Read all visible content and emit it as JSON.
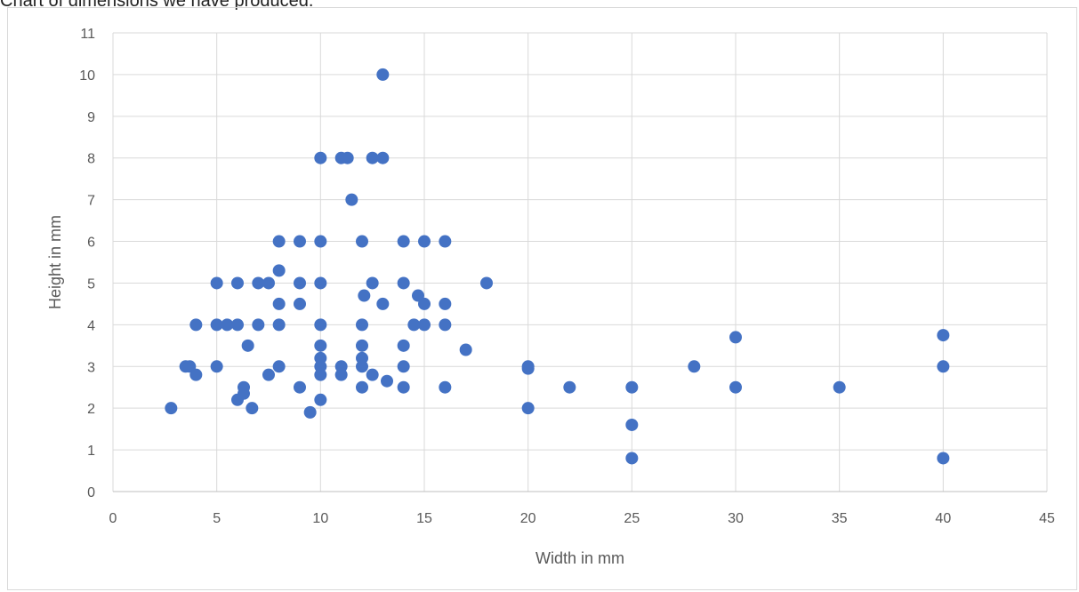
{
  "caption": "Chart of dimensions we have produced.",
  "chart_data": {
    "type": "scatter",
    "xlabel": "Width in mm",
    "ylabel": "Height in mm",
    "xlim": [
      0,
      45
    ],
    "ylim": [
      0,
      11
    ],
    "x_ticks": [
      "0",
      "5",
      "10",
      "15",
      "20",
      "25",
      "30",
      "35",
      "40",
      "45"
    ],
    "y_ticks": [
      "0",
      "1",
      "2",
      "3",
      "4",
      "5",
      "6",
      "7",
      "8",
      "9",
      "10",
      "11"
    ],
    "grid": true,
    "legend": "none",
    "marker_color": "#4472c4",
    "points": [
      [
        2.8,
        2.0
      ],
      [
        3.5,
        3.0
      ],
      [
        3.7,
        3.0
      ],
      [
        4.0,
        4.0
      ],
      [
        4.0,
        2.8
      ],
      [
        5.0,
        5.0
      ],
      [
        5.0,
        4.0
      ],
      [
        5.0,
        3.0
      ],
      [
        5.5,
        4.0
      ],
      [
        6.0,
        5.0
      ],
      [
        6.0,
        4.0
      ],
      [
        6.0,
        2.2
      ],
      [
        6.3,
        2.5
      ],
      [
        6.3,
        2.35
      ],
      [
        6.5,
        3.5
      ],
      [
        6.7,
        2.0
      ],
      [
        7.0,
        5.0
      ],
      [
        7.0,
        4.0
      ],
      [
        7.5,
        5.0
      ],
      [
        7.5,
        2.8
      ],
      [
        8.0,
        6.0
      ],
      [
        8.0,
        5.3
      ],
      [
        8.0,
        4.5
      ],
      [
        8.0,
        4.0
      ],
      [
        8.0,
        3.0
      ],
      [
        9.0,
        6.0
      ],
      [
        9.0,
        5.0
      ],
      [
        9.0,
        4.5
      ],
      [
        9.0,
        2.5
      ],
      [
        9.5,
        1.9
      ],
      [
        10.0,
        8.0
      ],
      [
        10.0,
        6.0
      ],
      [
        10.0,
        5.0
      ],
      [
        10.0,
        4.0
      ],
      [
        10.0,
        3.5
      ],
      [
        10.0,
        3.2
      ],
      [
        10.0,
        3.0
      ],
      [
        10.0,
        2.8
      ],
      [
        10.0,
        2.2
      ],
      [
        11.0,
        8.0
      ],
      [
        11.0,
        3.0
      ],
      [
        11.0,
        2.8
      ],
      [
        11.3,
        8.0
      ],
      [
        11.5,
        7.0
      ],
      [
        12.0,
        6.0
      ],
      [
        12.0,
        4.0
      ],
      [
        12.0,
        3.5
      ],
      [
        12.0,
        3.2
      ],
      [
        12.0,
        3.0
      ],
      [
        12.0,
        2.5
      ],
      [
        12.1,
        4.7
      ],
      [
        12.5,
        8.0
      ],
      [
        12.5,
        5.0
      ],
      [
        12.5,
        2.8
      ],
      [
        13.0,
        10.0
      ],
      [
        13.0,
        8.0
      ],
      [
        13.0,
        4.5
      ],
      [
        13.2,
        2.65
      ],
      [
        14.0,
        6.0
      ],
      [
        14.0,
        5.0
      ],
      [
        14.0,
        3.5
      ],
      [
        14.0,
        3.0
      ],
      [
        14.0,
        2.5
      ],
      [
        14.5,
        4.0
      ],
      [
        14.7,
        4.7
      ],
      [
        15.0,
        6.0
      ],
      [
        15.0,
        4.5
      ],
      [
        15.0,
        4.0
      ],
      [
        16.0,
        6.0
      ],
      [
        16.0,
        4.5
      ],
      [
        16.0,
        4.0
      ],
      [
        16.0,
        2.5
      ],
      [
        17.0,
        3.4
      ],
      [
        18.0,
        5.0
      ],
      [
        20.0,
        3.0
      ],
      [
        20.0,
        2.95
      ],
      [
        20.0,
        2.0
      ],
      [
        22.0,
        2.5
      ],
      [
        25.0,
        2.5
      ],
      [
        25.0,
        1.6
      ],
      [
        25.0,
        0.8
      ],
      [
        28.0,
        3.0
      ],
      [
        30.0,
        3.7
      ],
      [
        30.0,
        2.5
      ],
      [
        35.0,
        2.5
      ],
      [
        40.0,
        3.75
      ],
      [
        40.0,
        3.0
      ],
      [
        40.0,
        0.8
      ]
    ]
  }
}
